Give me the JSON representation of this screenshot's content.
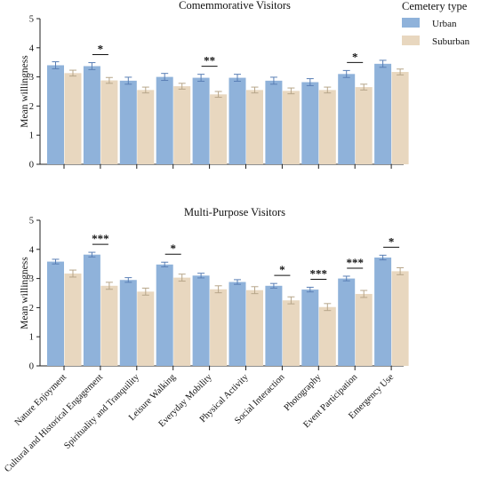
{
  "legend": {
    "title": "Cemetery type",
    "position": "top-right",
    "items": [
      {
        "label": "Urban",
        "color": "#8fb2da"
      },
      {
        "label": "Suburban",
        "color": "#e8d7bf"
      }
    ]
  },
  "chart_data": [
    {
      "type": "bar",
      "title": "Comemmorative Visitors",
      "xlabel": "",
      "ylabel": "Mean willingness",
      "ylim": [
        0,
        5
      ],
      "yticks": [
        0,
        1,
        2,
        3,
        4,
        5
      ],
      "grid": false,
      "categories": [
        "Nature Enjoyment",
        "Cultural and Historical Engagement",
        "Spirituality and Tranquility",
        "Leisure Walking",
        "Everyday Mobility",
        "Physical Activity",
        "Social Interaction",
        "Photography",
        "Event Participation",
        "Emergency Use"
      ],
      "series": [
        {
          "name": "Urban",
          "values": [
            3.4,
            3.37,
            2.87,
            3.0,
            2.97,
            2.97,
            2.87,
            2.82,
            3.1,
            3.45
          ],
          "errors": [
            0.12,
            0.12,
            0.12,
            0.12,
            0.12,
            0.12,
            0.12,
            0.12,
            0.12,
            0.12
          ]
        },
        {
          "name": "Suburban",
          "values": [
            3.13,
            2.88,
            2.55,
            2.68,
            2.4,
            2.55,
            2.52,
            2.55,
            2.65,
            3.17
          ],
          "errors": [
            0.1,
            0.1,
            0.1,
            0.1,
            0.1,
            0.1,
            0.1,
            0.1,
            0.1,
            0.1
          ]
        }
      ],
      "significance": [
        {
          "category_index": 1,
          "label": "*"
        },
        {
          "category_index": 4,
          "label": "**"
        },
        {
          "category_index": 8,
          "label": "*"
        }
      ]
    },
    {
      "type": "bar",
      "title": "Multi-Purpose Visitors",
      "xlabel": "",
      "ylabel": "Mean willingness",
      "ylim": [
        0,
        5
      ],
      "yticks": [
        0,
        1,
        2,
        3,
        4,
        5
      ],
      "grid": false,
      "categories": [
        "Nature Enjoyment",
        "Cultural and Historical Engagement",
        "Spirituality and Tranquility",
        "Leisure Walking",
        "Everyday Mobility",
        "Physical Activity",
        "Social Interaction",
        "Photography",
        "Event Participation",
        "Emergency Use"
      ],
      "series": [
        {
          "name": "Urban",
          "values": [
            3.58,
            3.82,
            2.95,
            3.48,
            3.1,
            2.88,
            2.75,
            2.62,
            3.0,
            3.72
          ],
          "errors": [
            0.08,
            0.08,
            0.08,
            0.08,
            0.08,
            0.08,
            0.08,
            0.08,
            0.08,
            0.08
          ]
        },
        {
          "name": "Suburban",
          "values": [
            3.17,
            2.75,
            2.55,
            3.03,
            2.63,
            2.6,
            2.25,
            2.02,
            2.47,
            3.25
          ],
          "errors": [
            0.12,
            0.12,
            0.12,
            0.12,
            0.12,
            0.12,
            0.12,
            0.12,
            0.12,
            0.12
          ]
        }
      ],
      "significance": [
        {
          "category_index": 1,
          "label": "***"
        },
        {
          "category_index": 3,
          "label": "*"
        },
        {
          "category_index": 6,
          "label": "*"
        },
        {
          "category_index": 7,
          "label": "***"
        },
        {
          "category_index": 8,
          "label": "***"
        },
        {
          "category_index": 9,
          "label": "*"
        }
      ]
    }
  ]
}
